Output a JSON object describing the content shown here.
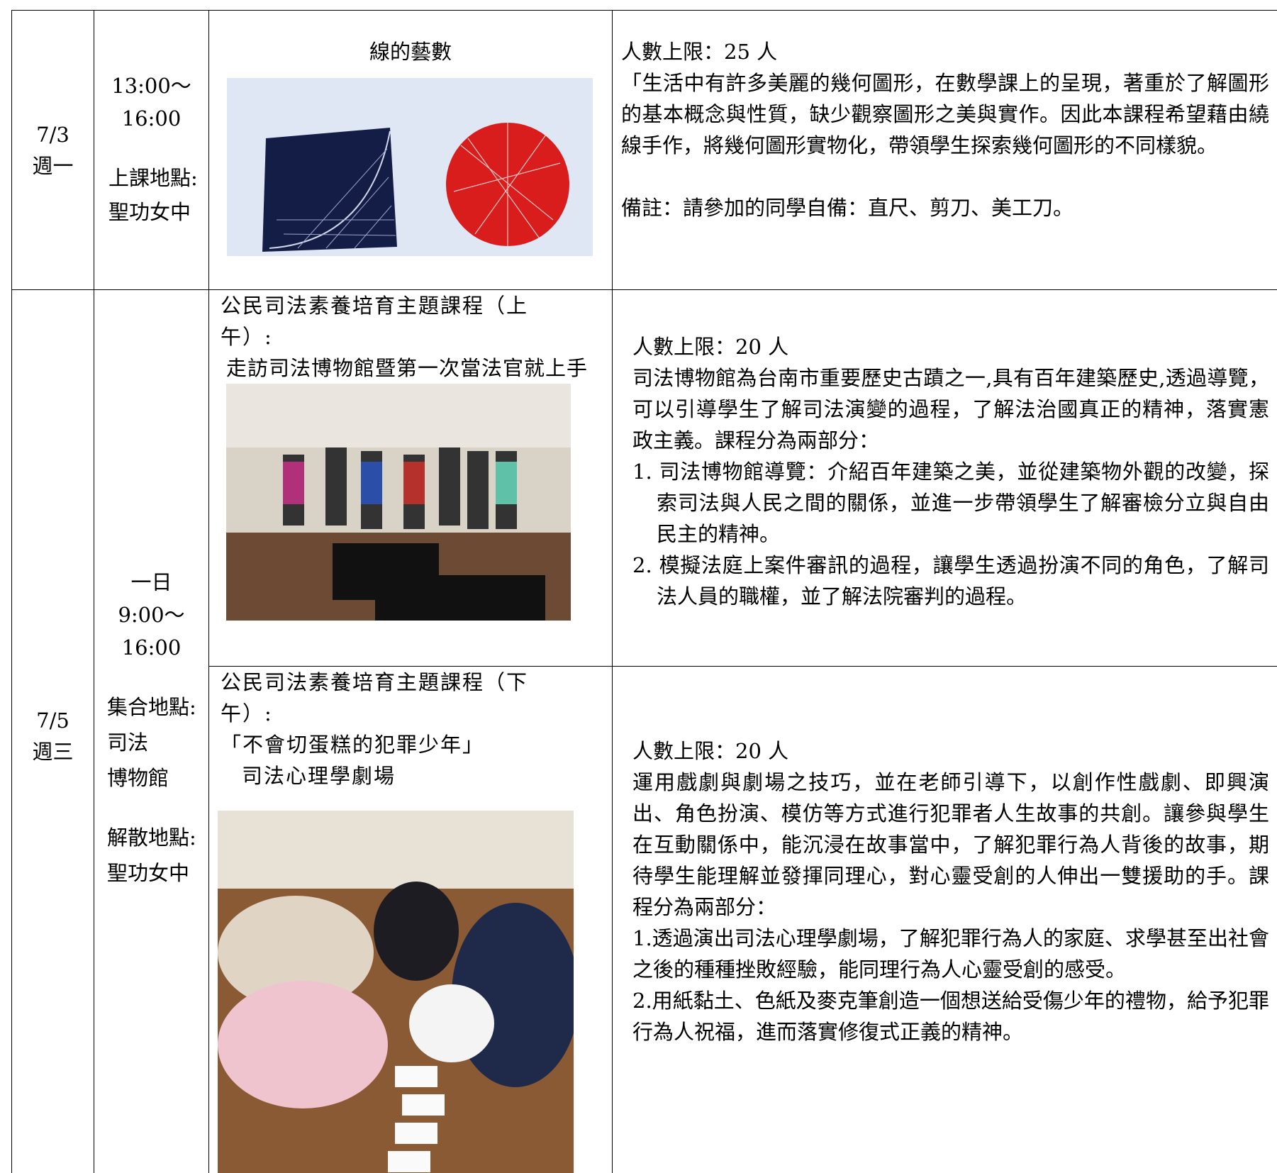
{
  "rows": [
    {
      "date": "7/3",
      "weekday": "週一",
      "time_start": "13:00～",
      "time_end": "16:00",
      "location_label": "上課地點:",
      "location": "聖功女中",
      "course_title": "線的藝數",
      "capacity": "人數上限：25 人",
      "description": "「生活中有許多美麗的幾何圖形，在數學課上的呈現，著重於了解圖形的基本概念與性質，缺少觀察圖形之美與實作。因此本課程希望藉由繞線手作，將幾何圖形實物化，帶領學生探索幾何圖形的不同樣貌。",
      "note": "備註：請參加的同學自備：直尺、剪刀、美工刀。"
    },
    {
      "date": "7/5",
      "weekday": "週三",
      "time_label": "一日",
      "time_start": "9:00～",
      "time_end": "16:00",
      "meet_label": "集合地點:",
      "meet_location": [
        "司法",
        "博物館"
      ],
      "dismiss_label": "解散地點:",
      "dismiss_location": "聖功女中",
      "sessions": [
        {
          "title": "公民司法素養培育主題課程（上午）:",
          "subtitle": "走訪司法博物館暨第一次當法官就上手",
          "capacity": "人數上限：20 人",
          "description": "司法博物館為台南市重要歷史古蹟之一,具有百年建築歷史,透過導覽，可以引導學生了解司法演變的過程，了解法治國真正的精神，落實憲政主義。課程分為兩部分：",
          "items": [
            "1. 司法博物館導覽：介紹百年建築之美，並從建築物外觀的改變，探索司法與人民之間的關係，並進一步帶領學生了解審檢分立與自由民主的精神。",
            "2. 模擬法庭上案件審訊的過程，讓學生透過扮演不同的角色，了解司法人員的職權，並了解法院審判的過程。"
          ]
        },
        {
          "title": "公民司法素養培育主題課程（下午）:",
          "subtitle_lines": [
            "「不會切蛋糕的犯罪少年」",
            "司法心理學劇場"
          ],
          "capacity": "人數上限：20 人",
          "description": "運用戲劇與劇場之技巧，並在老師引導下，以創作性戲劇、即興演出、角色扮演、模仿等方式進行犯罪者人生故事的共創。讓參與學生在互動關係中，能沉浸在故事當中，了解犯罪行為人背後的故事，期待學生能理解並發揮同理心，對心靈受創的人伸出一雙援助的手。課程分為兩部分：",
          "items": [
            "1.透過演出司法心理學劇場，了解犯罪行為人的家庭、求學甚至出社會之後的種種挫敗經驗，能同理行為人心靈受創的感受。",
            "2.用紙黏土、色紙及麥克筆創造一個想送給受傷少年的禮物，給予犯罪行為人祝福，進而落實修復式正義的精神。"
          ]
        }
      ]
    }
  ]
}
